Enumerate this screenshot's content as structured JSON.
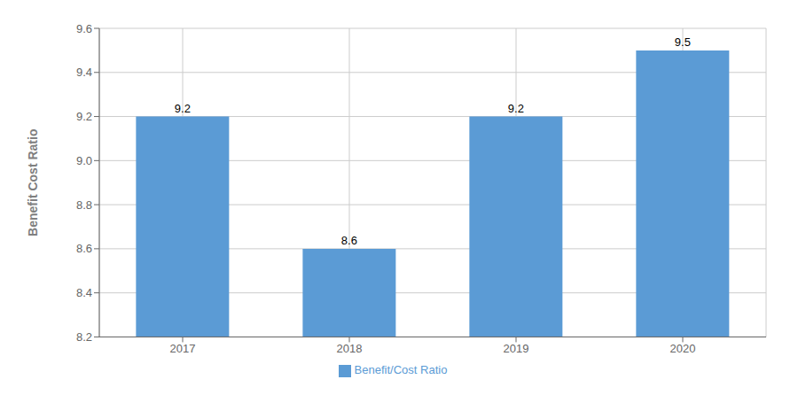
{
  "chart_data": {
    "type": "bar",
    "ylabel": "Benefit Cost Ratio",
    "categories": [
      "2017",
      "2018",
      "2019",
      "2020"
    ],
    "series": [
      {
        "name": "Benefit/Cost Ratio",
        "color": "#5B9BD5",
        "values": [
          9.2,
          8.6,
          9.2,
          9.5
        ]
      }
    ],
    "ylim": [
      8.2,
      9.6
    ],
    "yticks": [
      8.2,
      8.4,
      8.6,
      8.8,
      {
        "value": 9.0,
        "label": "9.0"
      },
      9.2,
      9.4,
      9.6
    ],
    "grid": true,
    "legend": "bottom",
    "data_labels": true
  }
}
